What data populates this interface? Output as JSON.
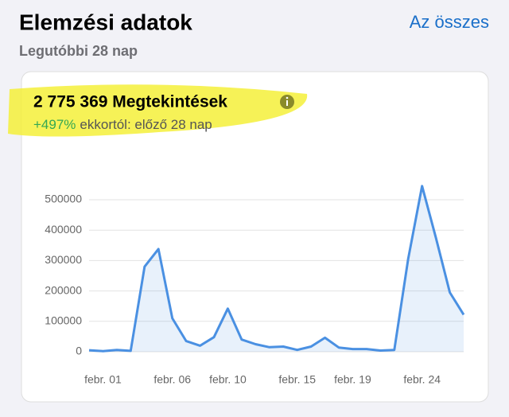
{
  "header": {
    "title": "Elemzési adatok",
    "link": "Az összes",
    "subtitle": "Legutóbbi 28 nap"
  },
  "card": {
    "headline": "2 775 369 Megtekintések",
    "change": "+497%",
    "change_text": "ekkortól: előző 28 nap"
  },
  "chart_data": {
    "type": "line",
    "color": "#4a90e2",
    "categories": [
      null,
      "febr. 01",
      null,
      null,
      null,
      null,
      "febr. 06",
      null,
      null,
      null,
      "febr. 10",
      null,
      null,
      null,
      null,
      "febr. 15",
      null,
      null,
      null,
      "febr. 19",
      null,
      null,
      null,
      null,
      "febr. 24",
      null,
      null,
      null
    ],
    "values": [
      5000,
      2000,
      6000,
      3000,
      280000,
      338000,
      110000,
      35000,
      20000,
      48000,
      142000,
      40000,
      25000,
      15000,
      17000,
      6000,
      17000,
      46000,
      14000,
      9000,
      9000,
      4000,
      6000,
      305000,
      545000,
      375000,
      195000,
      122000
    ],
    "ylim": [
      0,
      570000
    ],
    "yticks": [
      0,
      100000,
      200000,
      300000,
      400000,
      500000
    ],
    "grid": true
  }
}
